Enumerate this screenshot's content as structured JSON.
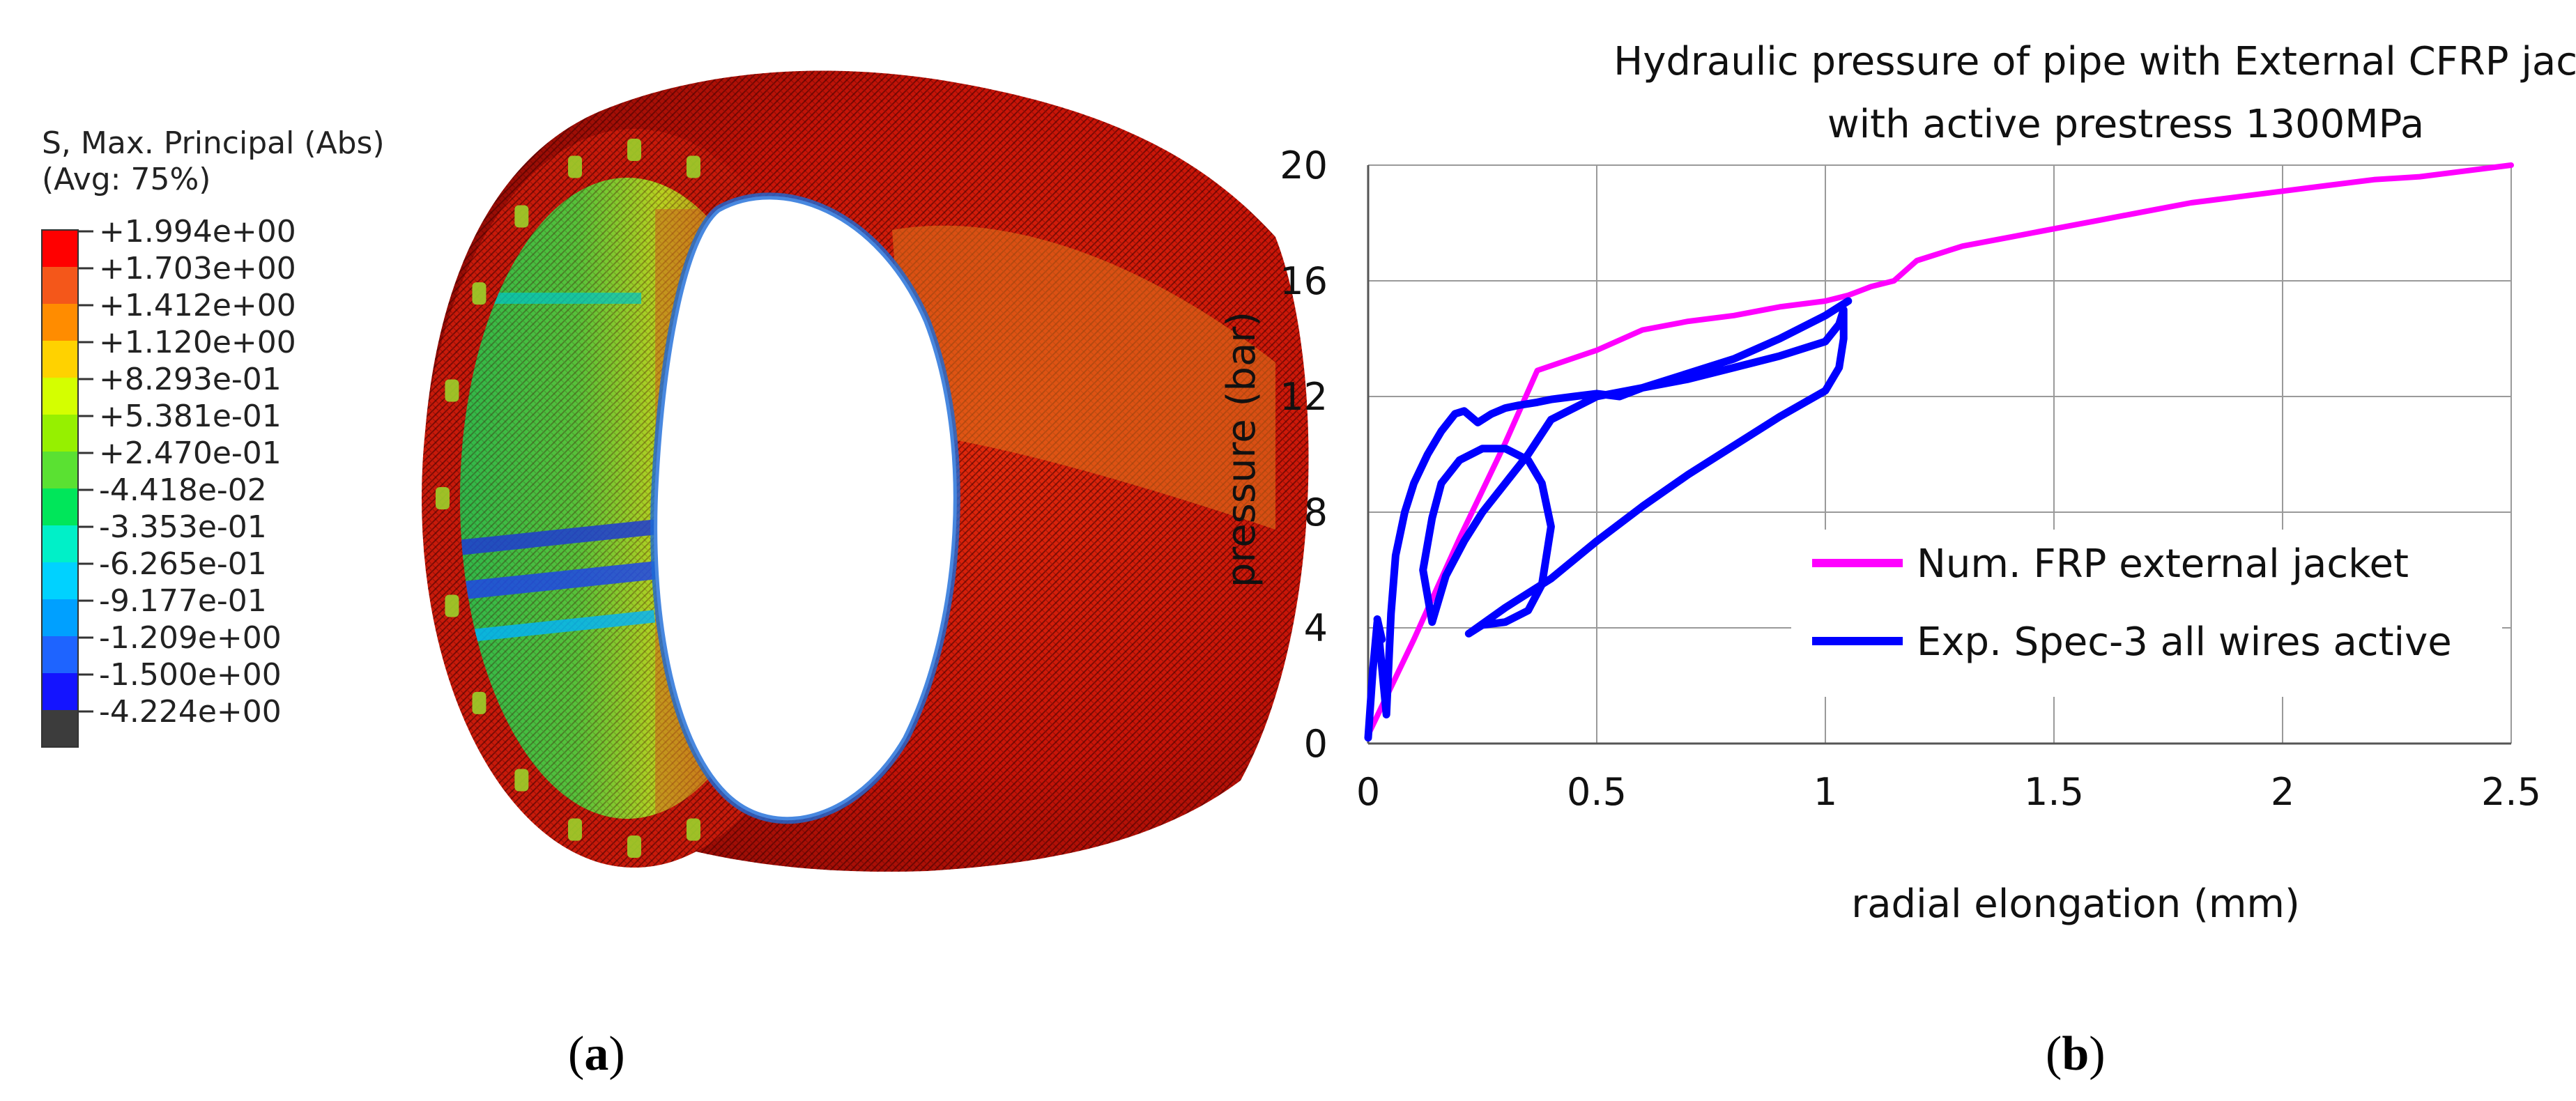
{
  "panel_a": {
    "legend_title_line1": "S, Max. Principal (Abs)",
    "legend_title_line2": "(Avg: 75%)",
    "legend_entries": [
      {
        "label": "+1.994e+00",
        "color": "#ff0000"
      },
      {
        "label": "+1.703e+00",
        "color": "#f4571a"
      },
      {
        "label": "+1.412e+00",
        "color": "#ff8c00"
      },
      {
        "label": "+1.120e+00",
        "color": "#ffd200"
      },
      {
        "label": "+8.293e-01",
        "color": "#d4ff00"
      },
      {
        "label": "+5.381e-01",
        "color": "#96f000"
      },
      {
        "label": "+2.470e-01",
        "color": "#5ae132"
      },
      {
        "label": "-4.418e-02",
        "color": "#00e65a"
      },
      {
        "label": "-3.353e-01",
        "color": "#00f0c8"
      },
      {
        "label": "-6.265e-01",
        "color": "#00d2ff"
      },
      {
        "label": "-9.177e-01",
        "color": "#00a0ff"
      },
      {
        "label": "-1.209e+00",
        "color": "#1e64ff"
      },
      {
        "label": "-1.500e+00",
        "color": "#1414ff"
      },
      {
        "label": "-4.224e+00",
        "color": "#3c3c3c"
      }
    ],
    "caption_letter": "a"
  },
  "panel_b": {
    "caption_letter": "b"
  },
  "chart_data": {
    "type": "line",
    "title_line1": "Hydraulic pressure of pipe with External CFRP jacket",
    "title_line2": "with active prestress 1300MPa",
    "xlabel": "radial elongation (mm)",
    "ylabel": "pressure (bar)",
    "xlim": [
      0,
      2.5
    ],
    "ylim": [
      0,
      20
    ],
    "x_ticks": [
      "0",
      "0.5",
      "1",
      "1.5",
      "2",
      "2.5"
    ],
    "y_ticks": [
      "0",
      "4",
      "8",
      "12",
      "16",
      "20"
    ],
    "grid": true,
    "legend_position": "lower-right",
    "series": [
      {
        "name": "Num. FRP external jacket",
        "color": "#ff00ff",
        "x": [
          0,
          0.1,
          0.2,
          0.3,
          0.37,
          0.5,
          0.6,
          0.7,
          0.8,
          0.9,
          1.0,
          1.05,
          1.1,
          1.15,
          1.2,
          1.3,
          1.4,
          1.5,
          1.6,
          1.7,
          1.8,
          1.9,
          2.0,
          2.1,
          2.2,
          2.3,
          2.4,
          2.5
        ],
        "y": [
          0.3,
          3.6,
          7.1,
          10.4,
          12.9,
          13.6,
          14.3,
          14.6,
          14.8,
          15.1,
          15.3,
          15.5,
          15.8,
          16.0,
          16.7,
          17.2,
          17.5,
          17.8,
          18.1,
          18.4,
          18.7,
          18.9,
          19.1,
          19.3,
          19.5,
          19.6,
          19.8,
          20.0
        ]
      },
      {
        "name": "Exp. Spec-3 all wires active",
        "color": "#0000ff",
        "x": [
          0,
          0.01,
          0.02,
          0.03,
          0.02,
          0.04,
          0.05,
          0.06,
          0.08,
          0.1,
          0.13,
          0.16,
          0.19,
          0.21,
          0.24,
          0.27,
          0.3,
          0.33,
          0.37,
          0.4,
          0.45,
          0.5,
          0.55,
          0.6,
          0.7,
          0.8,
          0.9,
          1.0,
          1.03,
          1.04,
          1.04,
          1.03,
          1.0,
          0.9,
          0.8,
          0.7,
          0.6,
          0.5,
          0.4,
          0.3,
          0.22,
          0.25,
          0.3,
          0.35,
          0.38,
          0.4,
          0.38,
          0.35,
          0.3,
          0.25,
          0.2,
          0.16,
          0.14,
          0.12,
          0.14,
          0.17,
          0.21,
          0.25,
          0.3,
          0.35,
          0.4,
          0.5,
          0.6,
          0.7,
          0.8,
          0.9,
          1.0,
          1.04,
          1.05
        ],
        "y": [
          0.2,
          2.5,
          4.2,
          3.6,
          4.3,
          1.0,
          4.5,
          6.5,
          8.0,
          9.0,
          10.0,
          10.8,
          11.4,
          11.5,
          11.1,
          11.4,
          11.6,
          11.7,
          11.8,
          11.9,
          12.0,
          12.1,
          12.0,
          12.3,
          12.6,
          13.0,
          13.4,
          13.9,
          14.5,
          15.0,
          14.0,
          13.0,
          12.2,
          11.3,
          10.3,
          9.3,
          8.2,
          7.0,
          5.7,
          4.7,
          3.8,
          4.1,
          4.2,
          4.6,
          5.5,
          7.5,
          9.0,
          9.8,
          10.2,
          10.2,
          9.8,
          9.0,
          7.8,
          6.0,
          4.2,
          5.8,
          7.0,
          8.0,
          9.0,
          10.0,
          11.2,
          12.0,
          12.3,
          12.8,
          13.3,
          14.0,
          14.8,
          15.2,
          15.3
        ]
      }
    ]
  }
}
